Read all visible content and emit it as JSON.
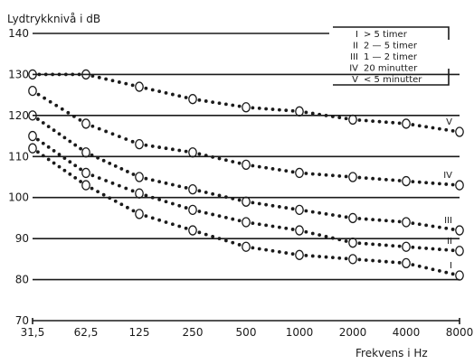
{
  "chart_data": {
    "type": "line",
    "ylabel": "Lydtrykknivå i dB",
    "xlabel": "Frekvens i Hz",
    "ylim": [
      70,
      140
    ],
    "yticks": [
      70,
      80,
      90,
      100,
      110,
      120,
      130,
      140
    ],
    "categories": [
      "31,5",
      "62,5",
      "125",
      "250",
      "500",
      "1000",
      "2000",
      "4000",
      "8000"
    ],
    "legend": [
      {
        "num": "I",
        "text": "> 5 timer"
      },
      {
        "num": "II",
        "text": "2 — 5 timer"
      },
      {
        "num": "III",
        "text": "1 — 2 timer"
      },
      {
        "num": "IV",
        "text": "20 minutter"
      },
      {
        "num": "V",
        "text": "< 5 minutter"
      }
    ],
    "legend_position": "top-right",
    "grid": "horizontal",
    "series": [
      {
        "name": "V",
        "values": [
          130,
          130,
          127,
          124,
          122,
          121,
          119,
          118,
          116
        ]
      },
      {
        "name": "IV",
        "values": [
          126,
          118,
          113,
          111,
          108,
          106,
          105,
          104,
          103
        ]
      },
      {
        "name": "III",
        "values": [
          120,
          111,
          105,
          102,
          99,
          97,
          95,
          94,
          92
        ]
      },
      {
        "name": "II",
        "values": [
          115,
          106,
          101,
          97,
          94,
          92,
          89,
          88,
          87
        ]
      },
      {
        "name": "I",
        "values": [
          112,
          103,
          96,
          92,
          88,
          86,
          85,
          84,
          81
        ]
      }
    ]
  }
}
